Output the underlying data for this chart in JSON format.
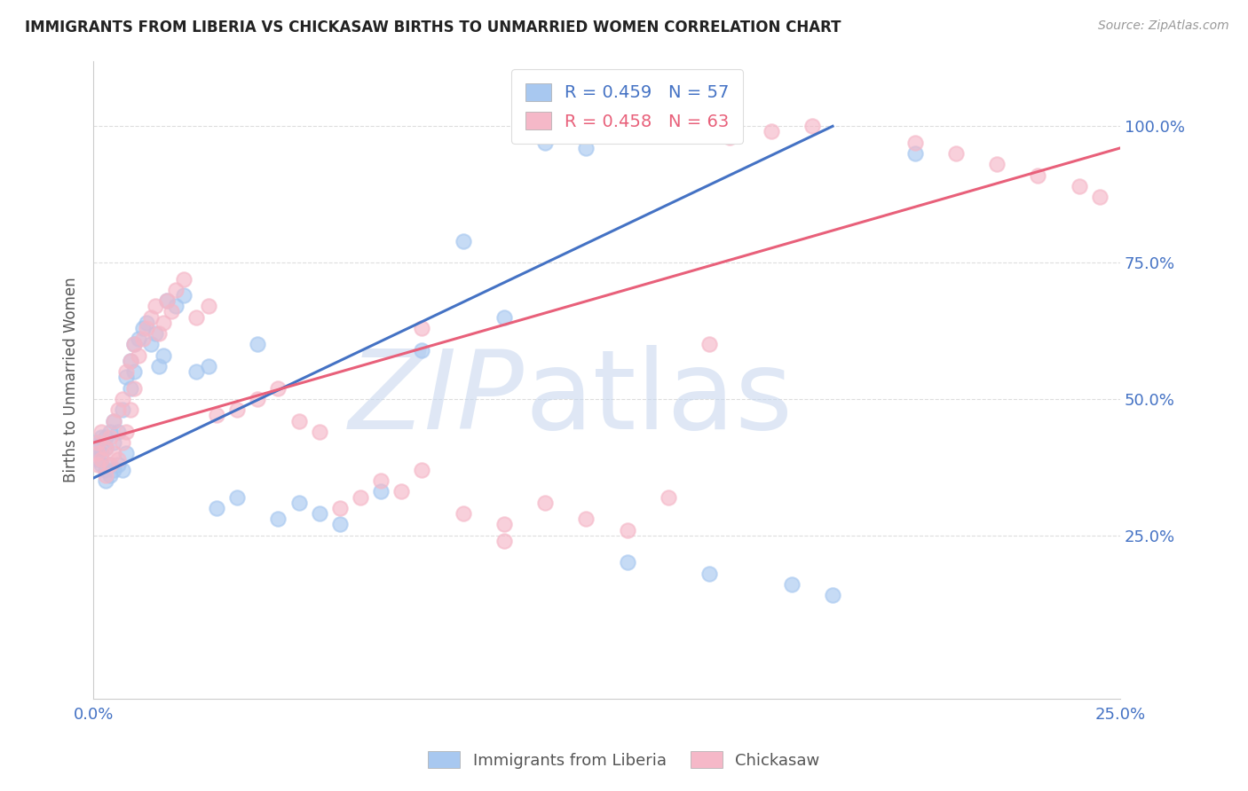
{
  "title": "IMMIGRANTS FROM LIBERIA VS CHICKASAW BIRTHS TO UNMARRIED WOMEN CORRELATION CHART",
  "source": "Source: ZipAtlas.com",
  "ylabel_left": "Births to Unmarried Women",
  "legend_blue_r": "R = 0.459",
  "legend_blue_n": "N = 57",
  "legend_pink_r": "R = 0.458",
  "legend_pink_n": "N = 63",
  "legend_blue_label": "Immigrants from Liberia",
  "legend_pink_label": "Chickasaw",
  "xlim": [
    0.0,
    0.25
  ],
  "ylim": [
    -0.05,
    1.12
  ],
  "blue_color": "#A8C8F0",
  "pink_color": "#F5B8C8",
  "blue_line_color": "#4472C4",
  "pink_line_color": "#E8607A",
  "title_color": "#222222",
  "axis_label_color": "#555555",
  "right_tick_color": "#4472C4",
  "grid_color": "#DDDDDD",
  "watermark_color": "#D0DFF5",
  "blue_scatter_x": [
    0.001,
    0.001,
    0.001,
    0.001,
    0.002,
    0.002,
    0.002,
    0.003,
    0.003,
    0.003,
    0.003,
    0.004,
    0.004,
    0.004,
    0.005,
    0.005,
    0.005,
    0.006,
    0.006,
    0.007,
    0.007,
    0.008,
    0.008,
    0.009,
    0.009,
    0.01,
    0.01,
    0.011,
    0.012,
    0.013,
    0.014,
    0.015,
    0.016,
    0.017,
    0.018,
    0.02,
    0.022,
    0.025,
    0.028,
    0.03,
    0.035,
    0.04,
    0.045,
    0.05,
    0.055,
    0.06,
    0.07,
    0.08,
    0.09,
    0.1,
    0.11,
    0.12,
    0.13,
    0.15,
    0.17,
    0.18,
    0.2
  ],
  "blue_scatter_y": [
    0.39,
    0.4,
    0.41,
    0.42,
    0.38,
    0.4,
    0.43,
    0.35,
    0.37,
    0.41,
    0.43,
    0.36,
    0.38,
    0.44,
    0.37,
    0.42,
    0.46,
    0.38,
    0.44,
    0.37,
    0.48,
    0.4,
    0.54,
    0.52,
    0.57,
    0.55,
    0.6,
    0.61,
    0.63,
    0.64,
    0.6,
    0.62,
    0.56,
    0.58,
    0.68,
    0.67,
    0.69,
    0.55,
    0.56,
    0.3,
    0.32,
    0.6,
    0.28,
    0.31,
    0.29,
    0.27,
    0.33,
    0.59,
    0.79,
    0.65,
    0.97,
    0.96,
    0.2,
    0.18,
    0.16,
    0.14,
    0.95
  ],
  "pink_scatter_x": [
    0.001,
    0.001,
    0.001,
    0.002,
    0.002,
    0.003,
    0.003,
    0.004,
    0.004,
    0.005,
    0.005,
    0.006,
    0.006,
    0.007,
    0.007,
    0.008,
    0.008,
    0.009,
    0.009,
    0.01,
    0.01,
    0.011,
    0.012,
    0.013,
    0.014,
    0.015,
    0.016,
    0.017,
    0.018,
    0.019,
    0.02,
    0.022,
    0.025,
    0.028,
    0.03,
    0.035,
    0.04,
    0.045,
    0.05,
    0.055,
    0.06,
    0.065,
    0.07,
    0.075,
    0.08,
    0.09,
    0.1,
    0.11,
    0.12,
    0.13,
    0.14,
    0.155,
    0.165,
    0.175,
    0.2,
    0.21,
    0.22,
    0.23,
    0.24,
    0.245,
    0.1,
    0.15,
    0.08
  ],
  "pink_scatter_y": [
    0.38,
    0.4,
    0.42,
    0.39,
    0.44,
    0.36,
    0.41,
    0.38,
    0.43,
    0.4,
    0.46,
    0.39,
    0.48,
    0.42,
    0.5,
    0.44,
    0.55,
    0.48,
    0.57,
    0.52,
    0.6,
    0.58,
    0.61,
    0.63,
    0.65,
    0.67,
    0.62,
    0.64,
    0.68,
    0.66,
    0.7,
    0.72,
    0.65,
    0.67,
    0.47,
    0.48,
    0.5,
    0.52,
    0.46,
    0.44,
    0.3,
    0.32,
    0.35,
    0.33,
    0.37,
    0.29,
    0.27,
    0.31,
    0.28,
    0.26,
    0.32,
    0.98,
    0.99,
    1.0,
    0.97,
    0.95,
    0.93,
    0.91,
    0.89,
    0.87,
    0.24,
    0.6,
    0.63
  ],
  "blue_line_x": [
    0.0,
    0.18
  ],
  "blue_line_y": [
    0.355,
    1.0
  ],
  "pink_line_x": [
    0.0,
    0.25
  ],
  "pink_line_y": [
    0.42,
    0.96
  ]
}
